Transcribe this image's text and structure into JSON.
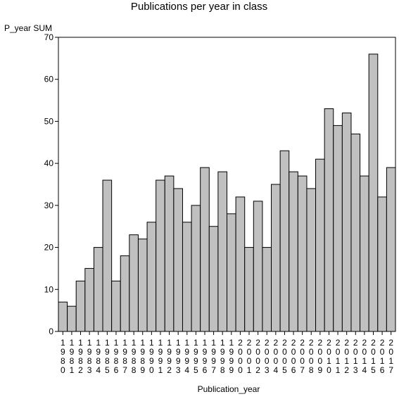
{
  "chart_data": {
    "type": "bar",
    "title": "Publications per year in class",
    "ylabel": "P_year SUM",
    "xlabel": "Publication_year",
    "ylim": [
      0,
      70
    ],
    "yticks": [
      0,
      10,
      20,
      30,
      40,
      50,
      60,
      70
    ],
    "grid": false,
    "bar_color": "#c0c0c0",
    "categories": [
      "1980",
      "1981",
      "1982",
      "1983",
      "1984",
      "1985",
      "1986",
      "1987",
      "1988",
      "1989",
      "1990",
      "1991",
      "1992",
      "1993",
      "1994",
      "1995",
      "1996",
      "1997",
      "1998",
      "1999",
      "2000",
      "2001",
      "2002",
      "2003",
      "2004",
      "2005",
      "2006",
      "2007",
      "2008",
      "2009",
      "2010",
      "2011",
      "2012",
      "2013",
      "2014",
      "2015",
      "2016",
      "2017"
    ],
    "values": [
      7,
      6,
      12,
      15,
      20,
      36,
      12,
      18,
      23,
      22,
      26,
      36,
      37,
      34,
      26,
      30,
      39,
      25,
      38,
      28,
      32,
      20,
      31,
      20,
      35,
      43,
      38,
      37,
      34,
      41,
      53,
      49,
      52,
      47,
      37,
      66,
      32,
      39
    ]
  }
}
